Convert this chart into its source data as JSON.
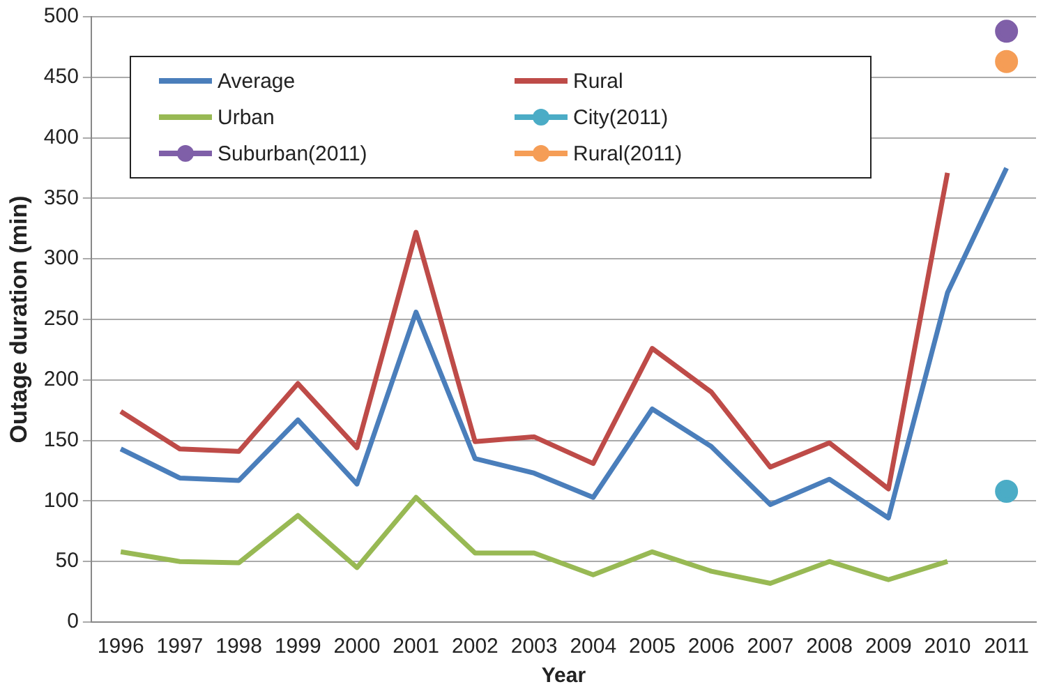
{
  "chart_data": {
    "type": "line",
    "xlabel": "Year",
    "ylabel": "Outage duration (min)",
    "categories": [
      "1996",
      "1997",
      "1998",
      "1999",
      "2000",
      "2001",
      "2002",
      "2003",
      "2004",
      "2005",
      "2006",
      "2007",
      "2008",
      "2009",
      "2010",
      "2011"
    ],
    "series": [
      {
        "name": "Average",
        "color": "#4a7ebb",
        "marker": "none",
        "values": [
          143,
          119,
          117,
          167,
          114,
          256,
          135,
          123,
          103,
          176,
          145,
          97,
          118,
          86,
          272,
          375
        ]
      },
      {
        "name": "Rural",
        "color": "#be4b48",
        "marker": "none",
        "values": [
          174,
          143,
          141,
          197,
          144,
          322,
          149,
          153,
          131,
          226,
          190,
          128,
          148,
          110,
          371,
          null
        ]
      },
      {
        "name": "Urban",
        "color": "#98b954",
        "marker": "none",
        "values": [
          58,
          50,
          49,
          88,
          45,
          103,
          57,
          57,
          39,
          58,
          42,
          32,
          50,
          35,
          50,
          null
        ]
      },
      {
        "name": "City(2011)",
        "color": "#4bacc6",
        "marker": "circle",
        "values": [
          null,
          null,
          null,
          null,
          null,
          null,
          null,
          null,
          null,
          null,
          null,
          null,
          null,
          null,
          null,
          108
        ]
      },
      {
        "name": "Suburban(2011)",
        "color": "#7f5fa8",
        "marker": "circle",
        "values": [
          null,
          null,
          null,
          null,
          null,
          null,
          null,
          null,
          null,
          null,
          null,
          null,
          null,
          null,
          null,
          488
        ]
      },
      {
        "name": "Rural(2011)",
        "color": "#f59d56",
        "marker": "circle",
        "values": [
          null,
          null,
          null,
          null,
          null,
          null,
          null,
          null,
          null,
          null,
          null,
          null,
          null,
          null,
          null,
          463
        ]
      }
    ],
    "ylim": [
      0,
      500
    ],
    "yticks": [
      0,
      50,
      100,
      150,
      200,
      250,
      300,
      350,
      400,
      450,
      500
    ],
    "grid": "y",
    "legend": "top left"
  }
}
